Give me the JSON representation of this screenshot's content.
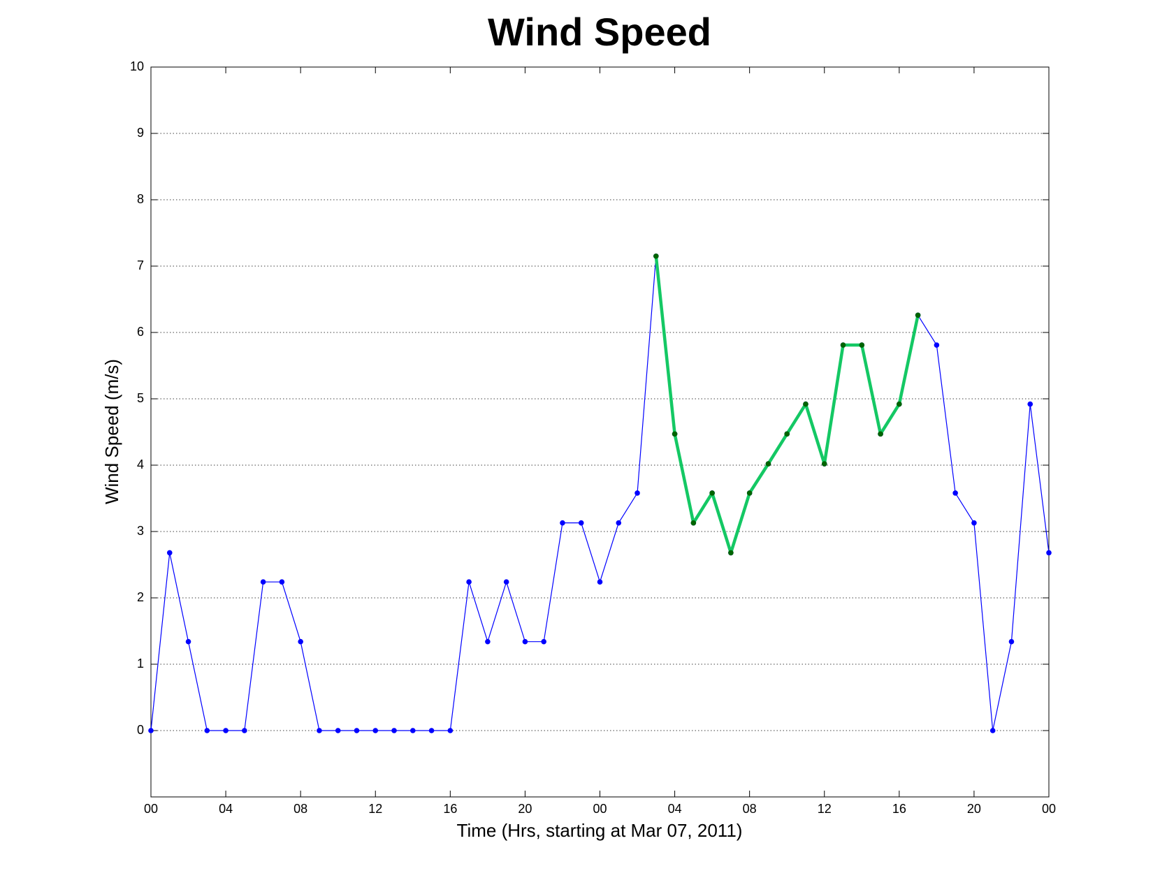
{
  "chart_data": {
    "type": "line",
    "title": "Wind Speed",
    "x_label": "Time (Hrs, starting at Mar 07, 2011)",
    "y_label": "Wind Speed (m/s)",
    "x": [
      0,
      1,
      2,
      3,
      4,
      5,
      6,
      7,
      8,
      9,
      10,
      11,
      12,
      13,
      14,
      15,
      16,
      17,
      18,
      19,
      20,
      21,
      22,
      23,
      24,
      25,
      26,
      27,
      28,
      29,
      30,
      31,
      32,
      33,
      34,
      35,
      36,
      37,
      38,
      39,
      40,
      41,
      42,
      43,
      44,
      45,
      46,
      47,
      48
    ],
    "series": [
      {
        "color": "#0000ff",
        "marker_color": "#0000ff",
        "line_width": 1.2,
        "values": [
          0,
          2.68,
          1.34,
          0,
          0,
          0,
          2.24,
          2.24,
          1.34,
          0,
          0,
          0,
          0,
          0,
          0,
          0,
          0,
          2.24,
          1.34,
          2.24,
          1.34,
          1.34,
          3.13,
          3.13,
          2.24,
          3.13,
          3.58,
          7.15,
          4.47,
          3.13,
          3.58,
          2.68,
          3.58,
          4.02,
          4.47,
          4.92,
          4.02,
          5.81,
          5.81,
          4.47,
          4.92,
          6.26,
          5.81,
          3.58,
          3.13,
          0,
          1.34,
          4.92,
          2.68
        ]
      },
      {
        "color": "#14c864",
        "marker_color": "#006400",
        "line_width": 4.5,
        "values": [
          null,
          null,
          null,
          null,
          null,
          null,
          null,
          null,
          null,
          null,
          null,
          null,
          null,
          null,
          null,
          null,
          null,
          null,
          null,
          null,
          null,
          null,
          null,
          null,
          null,
          null,
          null,
          7.15,
          4.47,
          3.13,
          3.58,
          2.68,
          3.58,
          4.02,
          4.47,
          4.92,
          4.02,
          5.81,
          5.81,
          4.47,
          4.92,
          6.26,
          null,
          null,
          null,
          null,
          null,
          null,
          null
        ]
      }
    ],
    "xlim": [
      0,
      48
    ],
    "xticks": [
      {
        "value": 0,
        "label": "00"
      },
      {
        "value": 4,
        "label": "04"
      },
      {
        "value": 8,
        "label": "08"
      },
      {
        "value": 12,
        "label": "12"
      },
      {
        "value": 16,
        "label": "16"
      },
      {
        "value": 20,
        "label": "20"
      },
      {
        "value": 24,
        "label": "00"
      },
      {
        "value": 28,
        "label": "04"
      },
      {
        "value": 32,
        "label": "08"
      },
      {
        "value": 36,
        "label": "12"
      },
      {
        "value": 40,
        "label": "16"
      },
      {
        "value": 44,
        "label": "20"
      },
      {
        "value": 48,
        "label": "00"
      }
    ],
    "ylim": [
      -1,
      10
    ],
    "yticks": [
      0,
      1,
      2,
      3,
      4,
      5,
      6,
      7,
      8,
      9,
      10
    ],
    "grid": true
  }
}
